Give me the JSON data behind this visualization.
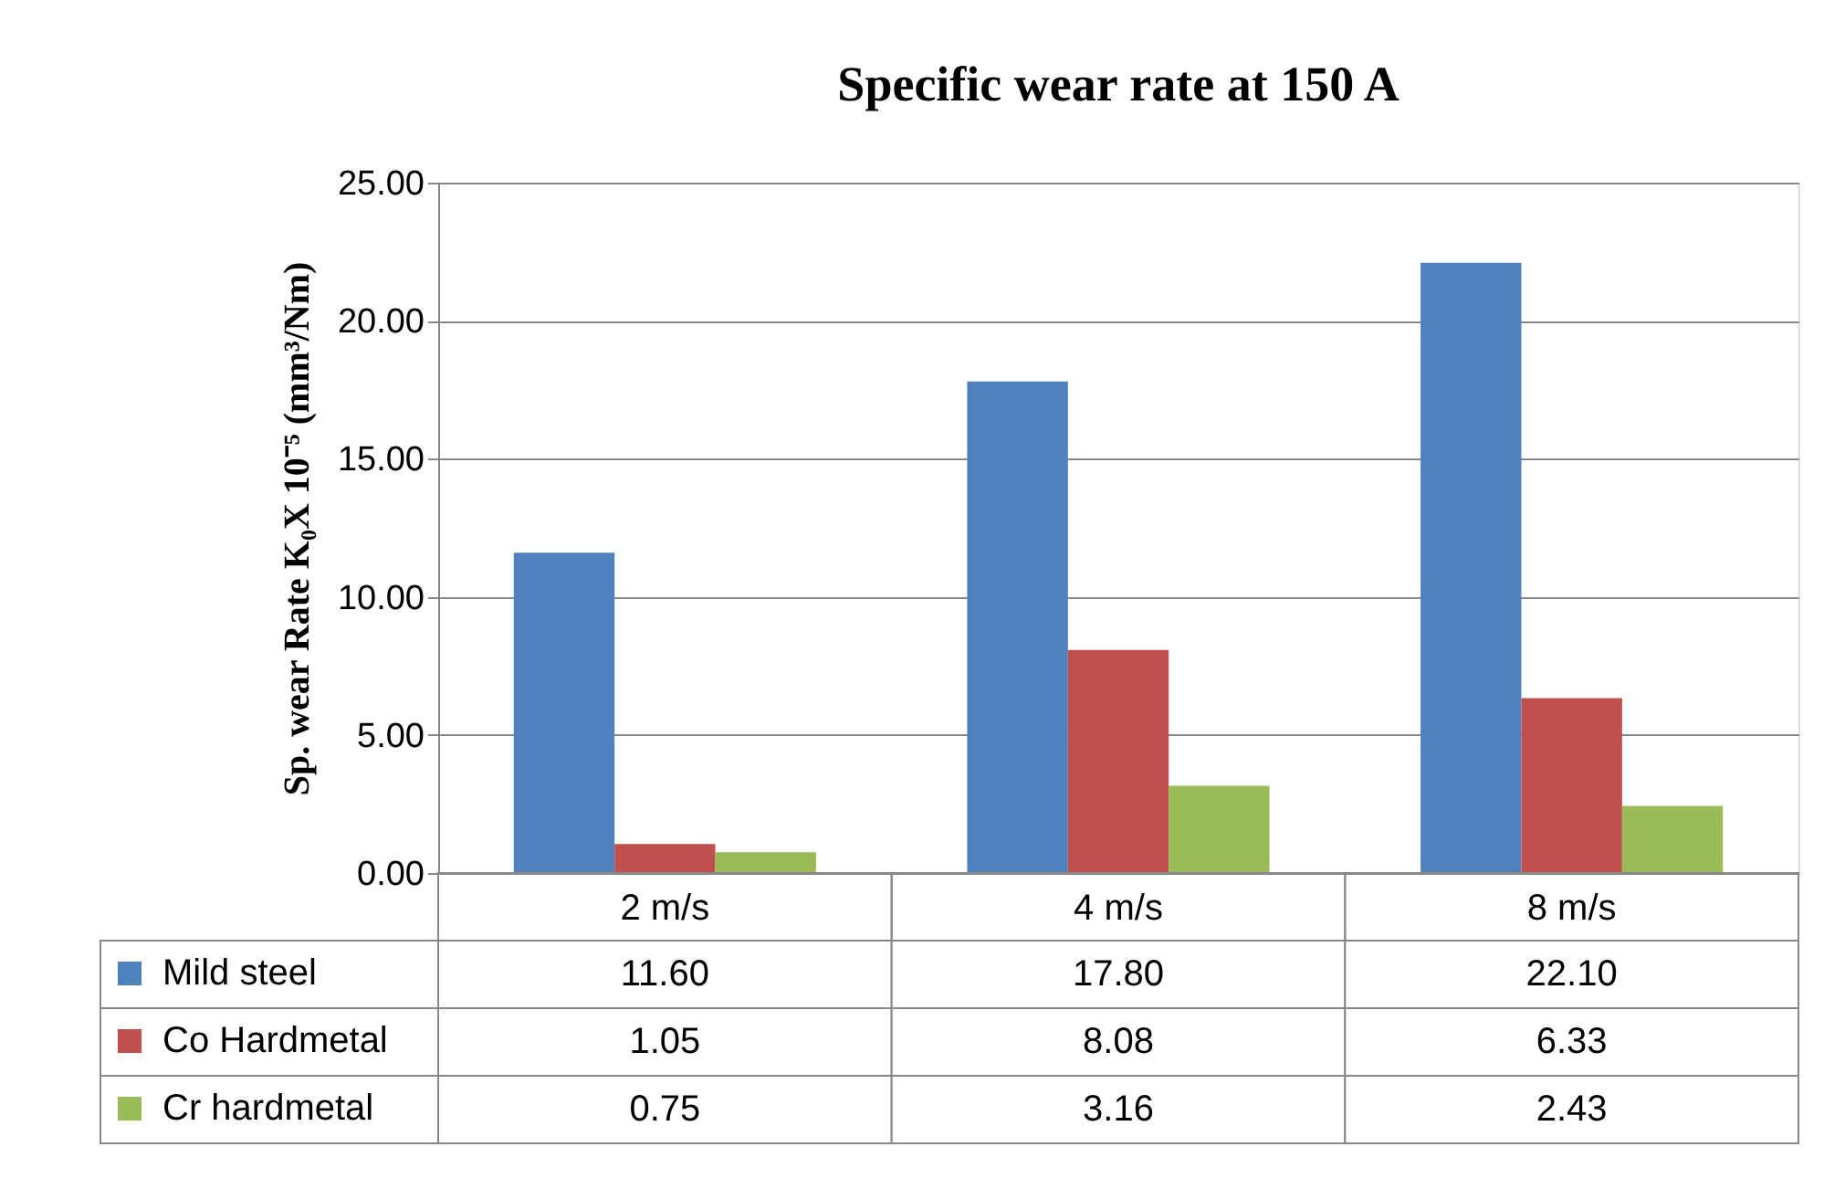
{
  "chart_data": {
    "type": "bar",
    "title": "Specific wear rate at 150 A",
    "ylabel": "Sp. wear Rate K₀X 10⁻⁵ (mm³/Nm)",
    "categories": [
      "2 m/s",
      "4 m/s",
      "8 m/s"
    ],
    "series": [
      {
        "name": "Mild steel",
        "color": "#4f81bd",
        "values": [
          11.6,
          17.8,
          22.1
        ],
        "value_labels": [
          "11.60",
          "17.80",
          "22.10"
        ]
      },
      {
        "name": "Co Hardmetal",
        "color": "#c0504d",
        "values": [
          1.05,
          8.08,
          6.33
        ],
        "value_labels": [
          "1.05",
          "8.08",
          "6.33"
        ]
      },
      {
        "name": "Cr hardmetal",
        "color": "#9bbb59",
        "values": [
          0.75,
          3.16,
          2.43
        ],
        "value_labels": [
          "0.75",
          "3.16",
          "2.43"
        ]
      }
    ],
    "ylim": [
      0,
      25
    ],
    "yticks": [
      {
        "value": 0,
        "label": "0.00"
      },
      {
        "value": 5,
        "label": "5.00"
      },
      {
        "value": 10,
        "label": "10.00"
      },
      {
        "value": 15,
        "label": "15.00"
      },
      {
        "value": 20,
        "label": "20.00"
      },
      {
        "value": 25,
        "label": "25.00"
      }
    ],
    "grid": "y",
    "legend": "bottom"
  }
}
